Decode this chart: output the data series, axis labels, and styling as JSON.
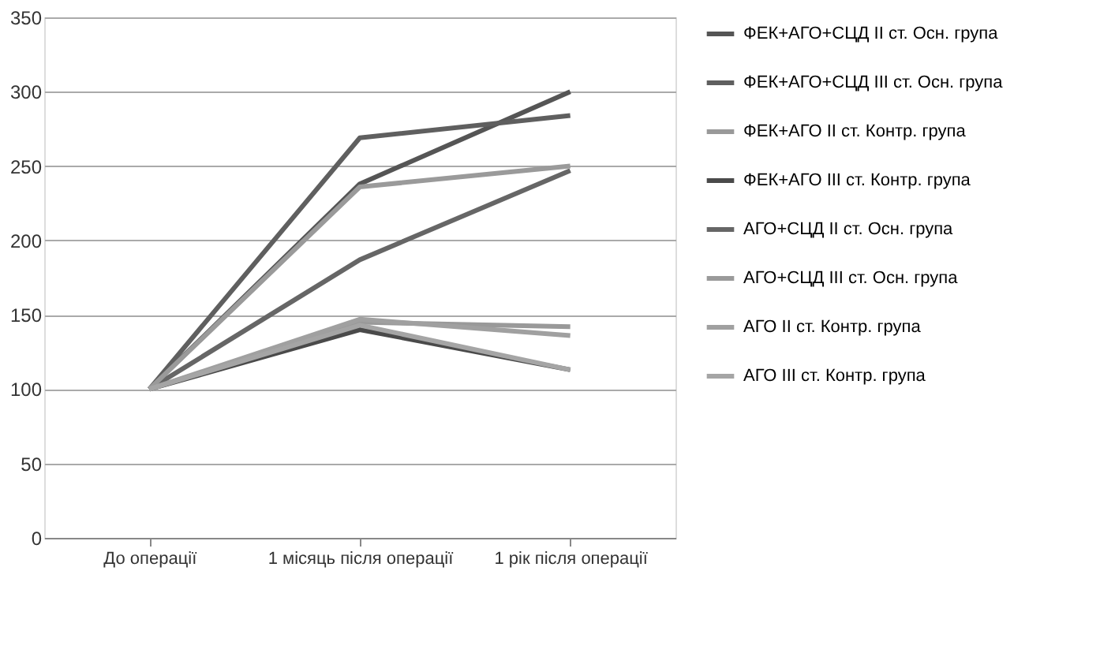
{
  "chart_data": {
    "type": "line",
    "categories": [
      "До операції",
      "1 місяць після операції",
      "1 рік після операції"
    ],
    "series": [
      {
        "name": "ФЕК+АГО+СЦД ІІ ст. Осн. група",
        "color": "#555555",
        "values": [
          100,
          238,
          300
        ]
      },
      {
        "name": "ФЕК+АГО+СЦД ІІІ ст. Осн. група",
        "color": "#5f5f5f",
        "values": [
          100,
          269,
          284
        ]
      },
      {
        "name": "ФЕК+АГО ІІ ст. Контр. група",
        "color": "#999999",
        "values": [
          100,
          145,
          142
        ]
      },
      {
        "name": "ФЕК+АГО ІІІ ст. Контр. група",
        "color": "#4a4a4a",
        "values": [
          100,
          140,
          113
        ]
      },
      {
        "name": "АГО+СЦД ІІ ст. Осн. група",
        "color": "#666666",
        "values": [
          100,
          187,
          247
        ]
      },
      {
        "name": "АГО+СЦД ІІІ ст. Осн. група",
        "color": "#9a9a9a",
        "values": [
          100,
          236,
          250
        ]
      },
      {
        "name": "АГО ІІ ст. Контр. група",
        "color": "#a0a0a0",
        "values": [
          100,
          147,
          136
        ]
      },
      {
        "name": "АГО ІІІ ст. Контр. група",
        "color": "#a5a5a5",
        "values": [
          100,
          143,
          113
        ]
      }
    ],
    "ylim": [
      0,
      350
    ],
    "yticks": [
      0,
      50,
      100,
      150,
      200,
      250,
      300,
      350
    ],
    "grid": "y",
    "legend": "right",
    "marker": "none",
    "line_style": "solid"
  }
}
